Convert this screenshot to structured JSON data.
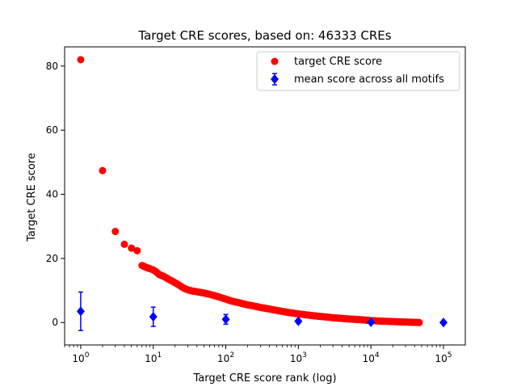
{
  "chart_data": {
    "type": "scatter",
    "title": "Target CRE scores, based on: 46333 CREs",
    "xlabel": "Target CRE score rank (log)",
    "ylabel": "Target CRE score",
    "xscale": "log",
    "xlim": [
      0.6,
      200000
    ],
    "ylim": [
      -7,
      86
    ],
    "x_ticks": [
      {
        "value": 1,
        "base": "10",
        "exp": "0"
      },
      {
        "value": 10,
        "base": "10",
        "exp": "1"
      },
      {
        "value": 100,
        "base": "10",
        "exp": "2"
      },
      {
        "value": 1000,
        "base": "10",
        "exp": "3"
      },
      {
        "value": 10000,
        "base": "10",
        "exp": "4"
      },
      {
        "value": 100000,
        "base": "10",
        "exp": "5"
      }
    ],
    "y_ticks": [
      {
        "value": 0,
        "label": "0"
      },
      {
        "value": 20,
        "label": "20"
      },
      {
        "value": 40,
        "label": "40"
      },
      {
        "value": 60,
        "label": "60"
      },
      {
        "value": 80,
        "label": "80"
      }
    ],
    "legend_position": "top-right",
    "series": [
      {
        "name": "target CRE score",
        "marker": "circle",
        "color": "#ff0000",
        "points": [
          [
            1,
            82.0
          ],
          [
            2,
            47.4
          ],
          [
            3,
            28.4
          ],
          [
            4,
            24.4
          ],
          [
            5,
            23.2
          ],
          [
            6,
            22.4
          ],
          [
            7,
            17.8
          ],
          [
            8,
            17.2
          ],
          [
            9,
            16.8
          ],
          [
            10,
            16.4
          ],
          [
            11,
            15.8
          ],
          [
            12,
            15.0
          ],
          [
            14,
            14.4
          ],
          [
            16,
            13.6
          ],
          [
            18,
            13.0
          ],
          [
            20,
            12.4
          ],
          [
            23,
            11.6
          ],
          [
            26,
            10.8
          ],
          [
            30,
            10.2
          ],
          [
            35,
            9.8
          ],
          [
            40,
            9.6
          ],
          [
            50,
            9.2
          ],
          [
            60,
            8.8
          ],
          [
            70,
            8.4
          ],
          [
            80,
            8.0
          ],
          [
            100,
            7.3
          ],
          [
            120,
            6.7
          ],
          [
            150,
            6.2
          ],
          [
            200,
            5.5
          ],
          [
            250,
            5.1
          ],
          [
            300,
            4.7
          ],
          [
            400,
            4.2
          ],
          [
            500,
            3.8
          ],
          [
            700,
            3.2
          ],
          [
            1000,
            2.7
          ],
          [
            1500,
            2.2
          ],
          [
            2000,
            1.9
          ],
          [
            3000,
            1.5
          ],
          [
            5000,
            1.1
          ],
          [
            7000,
            0.9
          ],
          [
            10000,
            0.6
          ],
          [
            15000,
            0.4
          ],
          [
            20000,
            0.3
          ],
          [
            30000,
            0.15
          ],
          [
            40000,
            0.05
          ],
          [
            46333,
            0.0
          ]
        ]
      },
      {
        "name": "mean score across all motifs",
        "marker": "diamond",
        "color": "#0000ff",
        "points": [
          {
            "x": 1,
            "y": 3.5,
            "err": 6.0
          },
          {
            "x": 10,
            "y": 1.8,
            "err": 3.0
          },
          {
            "x": 100,
            "y": 1.0,
            "err": 1.5
          },
          {
            "x": 1000,
            "y": 0.4,
            "err": 0.6
          },
          {
            "x": 10000,
            "y": 0.1,
            "err": 0.3
          },
          {
            "x": 100000,
            "y": 0.0,
            "err": 0.1
          }
        ]
      }
    ]
  }
}
